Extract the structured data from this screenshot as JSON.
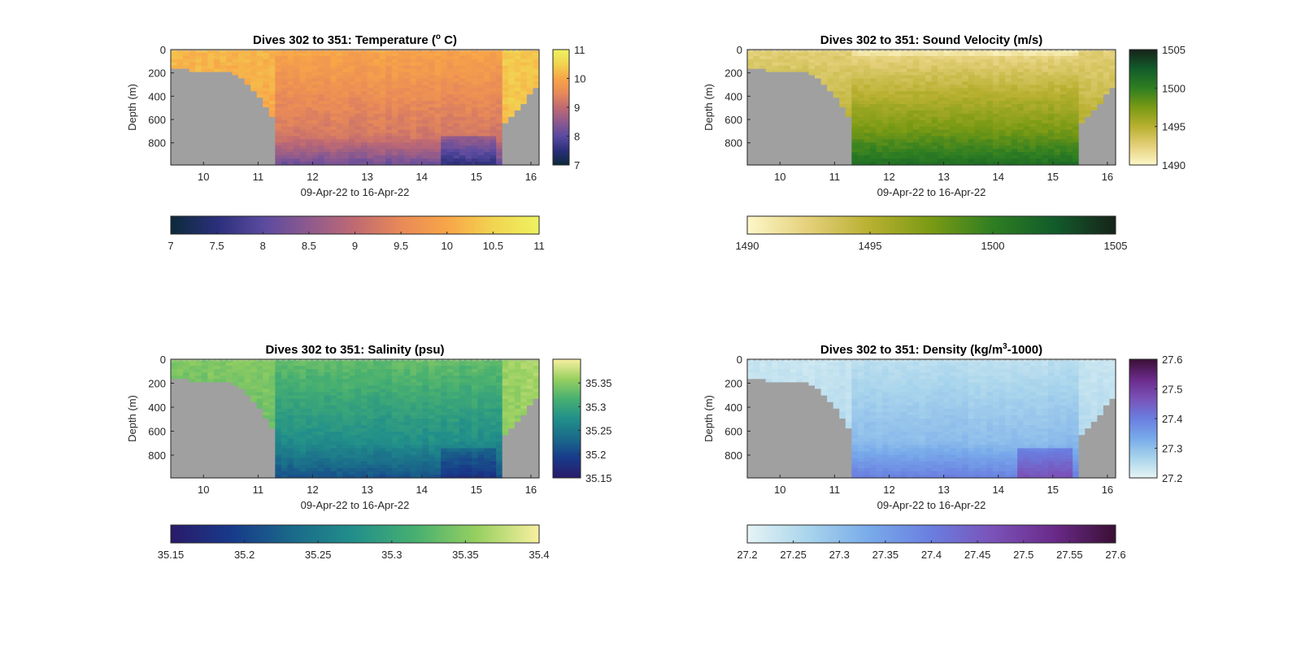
{
  "chart_data": [
    {
      "type": "heatmap",
      "title": "Dives 302 to 351: Temperature (",
      "title_sup": "o",
      "title_end": " C)",
      "xlabel": "09-Apr-22 to 16-Apr-22",
      "ylabel": "Depth (m)",
      "xlim": [
        9.4,
        16.15
      ],
      "ylim": [
        0,
        990
      ],
      "xticks": [
        10,
        11,
        12,
        13,
        14,
        15,
        16
      ],
      "yticks": [
        0,
        200,
        400,
        600,
        800
      ],
      "colormap": [
        "#0d2a3a",
        "#2a2f7a",
        "#5a4aa0",
        "#8e5a8e",
        "#c06a72",
        "#e88a58",
        "#f8a548",
        "#f2d450",
        "#eef260"
      ],
      "clim": [
        7,
        11
      ],
      "variable": "temperature",
      "vertical_colorbar": {
        "ticks": [
          11,
          10,
          9,
          8,
          7
        ]
      },
      "horizontal_colorbar": {
        "ticks": [
          "7",
          "7.5",
          "8",
          "8.5",
          "9",
          "9.5",
          "10",
          "10.5",
          "11"
        ]
      },
      "bathymetry_color": "#a0a0a0"
    },
    {
      "type": "heatmap",
      "title": "Dives 302 to 351: Sound Velocity (m/s)",
      "xlabel": "09-Apr-22 to 16-Apr-22",
      "ylabel": "Depth (m)",
      "xlim": [
        9.4,
        16.15
      ],
      "ylim": [
        0,
        990
      ],
      "xticks": [
        10,
        11,
        12,
        13,
        14,
        15,
        16
      ],
      "yticks": [
        0,
        200,
        400,
        600,
        800
      ],
      "colormap": [
        "#fdf7c8",
        "#e4d07a",
        "#b8b030",
        "#7a9a14",
        "#2e7e22",
        "#125c2a",
        "#16231a"
      ],
      "clim": [
        1490,
        1505
      ],
      "variable": "sound",
      "vertical_colorbar": {
        "ticks": [
          1505,
          1500,
          1495,
          1490
        ]
      },
      "horizontal_colorbar": {
        "ticks": [
          "1490",
          "1495",
          "1500",
          "1505"
        ]
      },
      "bathymetry_color": "#a0a0a0"
    },
    {
      "type": "heatmap",
      "title": "Dives 302 to 351: Salinity (psu)",
      "xlabel": "09-Apr-22 to 16-Apr-22",
      "ylabel": "Depth (m)",
      "xlim": [
        9.4,
        16.15
      ],
      "ylim": [
        0,
        990
      ],
      "xticks": [
        10,
        11,
        12,
        13,
        14,
        15,
        16
      ],
      "yticks": [
        0,
        200,
        400,
        600,
        800
      ],
      "colormap": [
        "#2a1a6a",
        "#183a8a",
        "#1a6a8a",
        "#22908a",
        "#48b070",
        "#98d060",
        "#f8f0a0"
      ],
      "clim": [
        35.15,
        35.4
      ],
      "variable": "salinity",
      "vertical_colorbar": {
        "ticks": [
          "35.35",
          "35.3",
          "35.25",
          "35.2",
          "35.15"
        ]
      },
      "horizontal_colorbar": {
        "ticks": [
          "35.15",
          "35.2",
          "35.25",
          "35.3",
          "35.35",
          "35.4"
        ]
      },
      "bathymetry_color": "#a0a0a0"
    },
    {
      "type": "heatmap",
      "title": "Dives 302 to 351: Density (kg/m",
      "title_sup": "3",
      "title_end": "-1000)",
      "xlabel": "09-Apr-22 to 16-Apr-22",
      "ylabel": "Depth (m)",
      "xlim": [
        9.4,
        16.15
      ],
      "ylim": [
        0,
        990
      ],
      "xticks": [
        10,
        11,
        12,
        13,
        14,
        15,
        16
      ],
      "yticks": [
        0,
        200,
        400,
        600,
        800
      ],
      "colormap": [
        "#e6f4f4",
        "#a8d4ec",
        "#78aaea",
        "#6a7ee0",
        "#7a52b8",
        "#6a2a8a",
        "#3a0f34"
      ],
      "clim": [
        27.2,
        27.6
      ],
      "variable": "density",
      "vertical_colorbar": {
        "ticks": [
          "27.6",
          "27.5",
          "27.4",
          "27.3",
          "27.2"
        ]
      },
      "horizontal_colorbar": {
        "ticks": [
          "27.2",
          "27.25",
          "27.3",
          "27.35",
          "27.4",
          "27.45",
          "27.5",
          "27.55",
          "27.6"
        ]
      },
      "bathymetry_color": "#a0a0a0"
    }
  ]
}
